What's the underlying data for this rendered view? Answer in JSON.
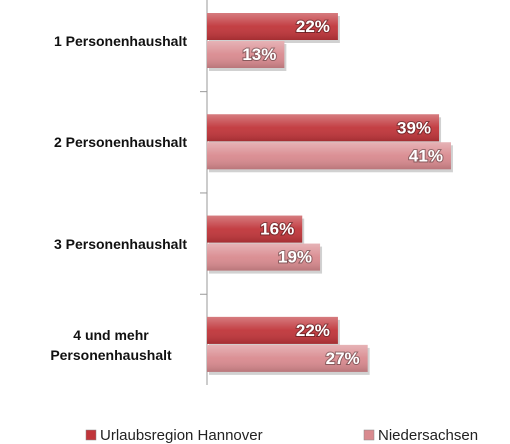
{
  "chart_data": {
    "type": "hbar",
    "categories": [
      "1 Personenhaushalt",
      "2 Personenhaushalt",
      "3 Personenhaushalt",
      "4 und mehr Personenhaushalt"
    ],
    "series": [
      {
        "name": "Urlaubsregion Hannover",
        "color": "#c0353a",
        "values": [
          22,
          39,
          16,
          22
        ],
        "value_labels": [
          "22%",
          "39%",
          "16%",
          "22%"
        ]
      },
      {
        "name": "Niedersachsen",
        "color": "#d98a8f",
        "values": [
          13,
          41,
          19,
          27
        ],
        "value_labels": [
          "13%",
          "41%",
          "19%",
          "27%"
        ]
      }
    ],
    "legend": "bottom"
  }
}
